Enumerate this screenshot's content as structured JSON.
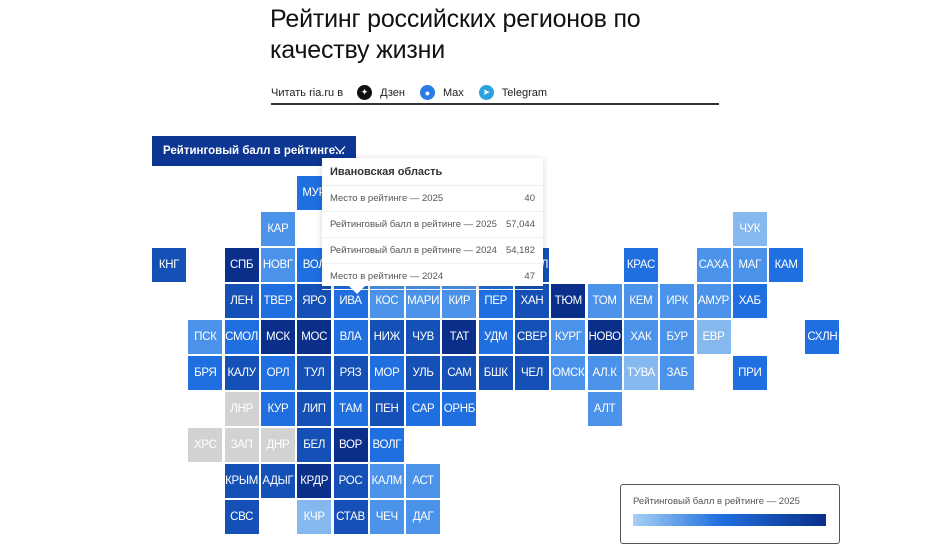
{
  "header": {
    "title": "Рейтинг российских регионов по качеству жизни",
    "share_label": "Читать ria.ru в",
    "share_links": [
      {
        "label": "Дзен",
        "icon": "dzen-icon"
      },
      {
        "label": "Max",
        "icon": "max-icon"
      },
      {
        "label": "Telegram",
        "icon": "telegram-icon"
      }
    ]
  },
  "dropdown": {
    "selected": "Рейтинговый балл в рейтинге..."
  },
  "tooltip": {
    "region": "Ивановская область",
    "rows": [
      {
        "label": "Место в рейтинге — 2025",
        "value": "40"
      },
      {
        "label": "Рейтинговый балл в рейтинге — 2025",
        "value": "57,044"
      },
      {
        "label": "Рейтинговый балл в рейтинге — 2024",
        "value": "54,182"
      },
      {
        "label": "Место в рейтинге — 2024",
        "value": "47"
      }
    ]
  },
  "legend": {
    "title": "Рейтинговый балл в рейтинге — 2025",
    "color_low": "#a9d0f5",
    "color_high": "#0a2f8a"
  },
  "colors": {
    "d1": "#0a2f8a",
    "d2": "#1450b5",
    "m": "#1f6fe0",
    "l": "#4a92ea",
    "ll": "#86b8f0",
    "g": "#d2d2d2"
  },
  "chart_data": {
    "type": "heatmap",
    "title": "Рейтинг российских регионов по качеству жизни",
    "metric": "Рейтинговый балл в рейтинге — 2025",
    "layout": "tile grid map (col,row)",
    "highlight": {
      "code": "ИВА",
      "name": "Ивановская область",
      "rank_2025": 40,
      "score_2025": 57.044,
      "score_2024": 54.182,
      "rank_2024": 47
    },
    "tiles": [
      {
        "code": "МУР",
        "col": 4,
        "row": 0,
        "shade": "m"
      },
      {
        "code": "КАР",
        "col": 3,
        "row": 1,
        "shade": "l"
      },
      {
        "code": "ЧУК",
        "col": 16,
        "row": 1,
        "shade": "ll"
      },
      {
        "code": "КНГ",
        "col": 0,
        "row": 2,
        "shade": "d2"
      },
      {
        "code": "СПБ",
        "col": 2,
        "row": 2,
        "shade": "d1"
      },
      {
        "code": "НОВГ",
        "col": 3,
        "row": 2,
        "shade": "l"
      },
      {
        "code": "ВОЛ",
        "col": 4,
        "row": 2,
        "shade": "m"
      },
      {
        "code": "ЯМАЛ",
        "col": 10,
        "row": 2,
        "shade": "d2"
      },
      {
        "code": "КРАС",
        "col": 13,
        "row": 2,
        "shade": "m"
      },
      {
        "code": "САХА",
        "col": 15,
        "row": 2,
        "shade": "l"
      },
      {
        "code": "МАГ",
        "col": 16,
        "row": 2,
        "shade": "l"
      },
      {
        "code": "КАМ",
        "col": 17,
        "row": 2,
        "shade": "m"
      },
      {
        "code": "ЛЕН",
        "col": 2,
        "row": 3,
        "shade": "d2"
      },
      {
        "code": "ТВЕР",
        "col": 3,
        "row": 3,
        "shade": "m"
      },
      {
        "code": "ЯРО",
        "col": 4,
        "row": 3,
        "shade": "d2"
      },
      {
        "code": "ИВА",
        "col": 5,
        "row": 3,
        "shade": "m"
      },
      {
        "code": "КОС",
        "col": 6,
        "row": 3,
        "shade": "l"
      },
      {
        "code": "МАРИ",
        "col": 7,
        "row": 3,
        "shade": "l"
      },
      {
        "code": "КИР",
        "col": 8,
        "row": 3,
        "shade": "l"
      },
      {
        "code": "ПЕР",
        "col": 9,
        "row": 3,
        "shade": "m"
      },
      {
        "code": "ХАН",
        "col": 10,
        "row": 3,
        "shade": "d2"
      },
      {
        "code": "ТЮМ",
        "col": 11,
        "row": 3,
        "shade": "d1"
      },
      {
        "code": "ТОМ",
        "col": 12,
        "row": 3,
        "shade": "l"
      },
      {
        "code": "КЕМ",
        "col": 13,
        "row": 3,
        "shade": "l"
      },
      {
        "code": "ИРК",
        "col": 14,
        "row": 3,
        "shade": "l"
      },
      {
        "code": "АМУР",
        "col": 15,
        "row": 3,
        "shade": "l"
      },
      {
        "code": "ХАБ",
        "col": 16,
        "row": 3,
        "shade": "m"
      },
      {
        "code": "ПСК",
        "col": 1,
        "row": 4,
        "shade": "l"
      },
      {
        "code": "СМОЛ",
        "col": 2,
        "row": 4,
        "shade": "m"
      },
      {
        "code": "МСК",
        "col": 3,
        "row": 4,
        "shade": "d1"
      },
      {
        "code": "МОС",
        "col": 4,
        "row": 4,
        "shade": "d1"
      },
      {
        "code": "ВЛА",
        "col": 5,
        "row": 4,
        "shade": "m"
      },
      {
        "code": "НИЖ",
        "col": 6,
        "row": 4,
        "shade": "d2"
      },
      {
        "code": "ЧУВ",
        "col": 7,
        "row": 4,
        "shade": "d2"
      },
      {
        "code": "ТАТ",
        "col": 8,
        "row": 4,
        "shade": "d1"
      },
      {
        "code": "УДМ",
        "col": 9,
        "row": 4,
        "shade": "m"
      },
      {
        "code": "СВЕР",
        "col": 10,
        "row": 4,
        "shade": "d2"
      },
      {
        "code": "КУРГ",
        "col": 11,
        "row": 4,
        "shade": "l"
      },
      {
        "code": "НОВО",
        "col": 12,
        "row": 4,
        "shade": "d1"
      },
      {
        "code": "ХАК",
        "col": 13,
        "row": 4,
        "shade": "l"
      },
      {
        "code": "БУР",
        "col": 14,
        "row": 4,
        "shade": "l"
      },
      {
        "code": "ЕВР",
        "col": 15,
        "row": 4,
        "shade": "ll"
      },
      {
        "code": "СХЛН",
        "col": 18,
        "row": 4,
        "shade": "m"
      },
      {
        "code": "БРЯ",
        "col": 1,
        "row": 5,
        "shade": "m"
      },
      {
        "code": "КАЛУ",
        "col": 2,
        "row": 5,
        "shade": "d2"
      },
      {
        "code": "ОРЛ",
        "col": 3,
        "row": 5,
        "shade": "m"
      },
      {
        "code": "ТУЛ",
        "col": 4,
        "row": 5,
        "shade": "d2"
      },
      {
        "code": "РЯЗ",
        "col": 5,
        "row": 5,
        "shade": "d2"
      },
      {
        "code": "МОР",
        "col": 6,
        "row": 5,
        "shade": "m"
      },
      {
        "code": "УЛЬ",
        "col": 7,
        "row": 5,
        "shade": "d2"
      },
      {
        "code": "САМ",
        "col": 8,
        "row": 5,
        "shade": "d2"
      },
      {
        "code": "БШК",
        "col": 9,
        "row": 5,
        "shade": "d2"
      },
      {
        "code": "ЧЕЛ",
        "col": 10,
        "row": 5,
        "shade": "d2"
      },
      {
        "code": "ОМСК",
        "col": 11,
        "row": 5,
        "shade": "l"
      },
      {
        "code": "АЛ.К",
        "col": 12,
        "row": 5,
        "shade": "l"
      },
      {
        "code": "ТУВА",
        "col": 13,
        "row": 5,
        "shade": "ll"
      },
      {
        "code": "ЗАБ",
        "col": 14,
        "row": 5,
        "shade": "l"
      },
      {
        "code": "ПРИ",
        "col": 16,
        "row": 5,
        "shade": "m"
      },
      {
        "code": "ЛНР",
        "col": 2,
        "row": 6,
        "shade": "g"
      },
      {
        "code": "КУР",
        "col": 3,
        "row": 6,
        "shade": "m"
      },
      {
        "code": "ЛИП",
        "col": 4,
        "row": 6,
        "shade": "d2"
      },
      {
        "code": "ТАМ",
        "col": 5,
        "row": 6,
        "shade": "m"
      },
      {
        "code": "ПЕН",
        "col": 6,
        "row": 6,
        "shade": "d2"
      },
      {
        "code": "САР",
        "col": 7,
        "row": 6,
        "shade": "m"
      },
      {
        "code": "ОРНБ",
        "col": 8,
        "row": 6,
        "shade": "m"
      },
      {
        "code": "АЛТ",
        "col": 12,
        "row": 6,
        "shade": "l"
      },
      {
        "code": "ХРС",
        "col": 1,
        "row": 7,
        "shade": "g"
      },
      {
        "code": "ЗАП",
        "col": 2,
        "row": 7,
        "shade": "g"
      },
      {
        "code": "ДНР",
        "col": 3,
        "row": 7,
        "shade": "g"
      },
      {
        "code": "БЕЛ",
        "col": 4,
        "row": 7,
        "shade": "d2"
      },
      {
        "code": "ВОР",
        "col": 5,
        "row": 7,
        "shade": "d1"
      },
      {
        "code": "ВОЛГ",
        "col": 6,
        "row": 7,
        "shade": "m"
      },
      {
        "code": "КРЫМ",
        "col": 2,
        "row": 8,
        "shade": "d2"
      },
      {
        "code": "АДЫГ",
        "col": 3,
        "row": 8,
        "shade": "d2"
      },
      {
        "code": "КРДР",
        "col": 4,
        "row": 8,
        "shade": "d1"
      },
      {
        "code": "РОС",
        "col": 5,
        "row": 8,
        "shade": "d2"
      },
      {
        "code": "КАЛМ",
        "col": 6,
        "row": 8,
        "shade": "l"
      },
      {
        "code": "АСТ",
        "col": 7,
        "row": 8,
        "shade": "l"
      },
      {
        "code": "СВС",
        "col": 2,
        "row": 9,
        "shade": "d2"
      },
      {
        "code": "КЧР",
        "col": 4,
        "row": 9,
        "shade": "ll"
      },
      {
        "code": "СТАВ",
        "col": 5,
        "row": 9,
        "shade": "d2"
      },
      {
        "code": "ЧЕЧ",
        "col": 6,
        "row": 9,
        "shade": "l"
      },
      {
        "code": "ДАГ",
        "col": 7,
        "row": 9,
        "shade": "l"
      }
    ]
  }
}
